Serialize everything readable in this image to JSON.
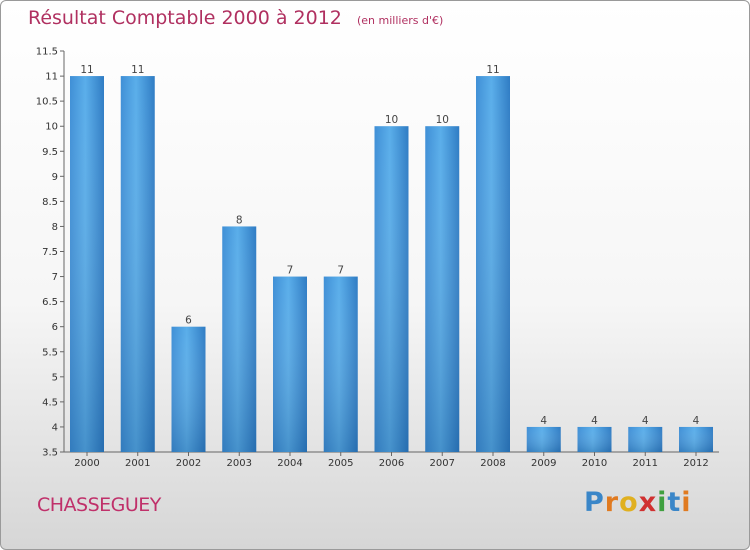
{
  "chart_data": {
    "type": "bar",
    "title": "Résultat Comptable 2000 à 2012",
    "unit_note": "(en milliers d'€)",
    "categories": [
      "2000",
      "2001",
      "2002",
      "2003",
      "2004",
      "2005",
      "2006",
      "2007",
      "2008",
      "2009",
      "2010",
      "2011",
      "2012"
    ],
    "values": [
      11,
      11,
      6,
      8,
      7,
      7,
      10,
      10,
      11,
      4,
      4,
      4,
      4
    ],
    "value_labels": [
      "11",
      "11",
      "6",
      "8",
      "7",
      "7",
      "10",
      "10",
      "11",
      "4",
      "4",
      "4",
      "4"
    ],
    "ylim": [
      3.5,
      11.5
    ],
    "yticks": [
      3.5,
      4,
      4.5,
      5,
      5.5,
      6,
      6.5,
      7,
      7.5,
      8,
      8.5,
      9,
      9.5,
      10,
      10.5,
      11,
      11.5
    ],
    "ytick_labels": [
      "3.5",
      "4",
      "4.5",
      "5",
      "5.5",
      "6",
      "6.5",
      "7",
      "7.5",
      "8",
      "8.5",
      "9",
      "9.5",
      "10",
      "10.5",
      "11",
      "11.5"
    ],
    "grid": false,
    "bar_color": "#4a9ee0"
  },
  "footer": {
    "city": "CHASSEGUEY",
    "brand_letters": [
      {
        "char": "P",
        "color": "#3a86c8"
      },
      {
        "char": "r",
        "color": "#e07a20"
      },
      {
        "char": "o",
        "color": "#e0b020"
      },
      {
        "char": "x",
        "color": "#d03030"
      },
      {
        "char": "i",
        "color": "#40a040"
      },
      {
        "char": "t",
        "color": "#3a86c8"
      },
      {
        "char": "i",
        "color": "#e07a20"
      }
    ]
  }
}
